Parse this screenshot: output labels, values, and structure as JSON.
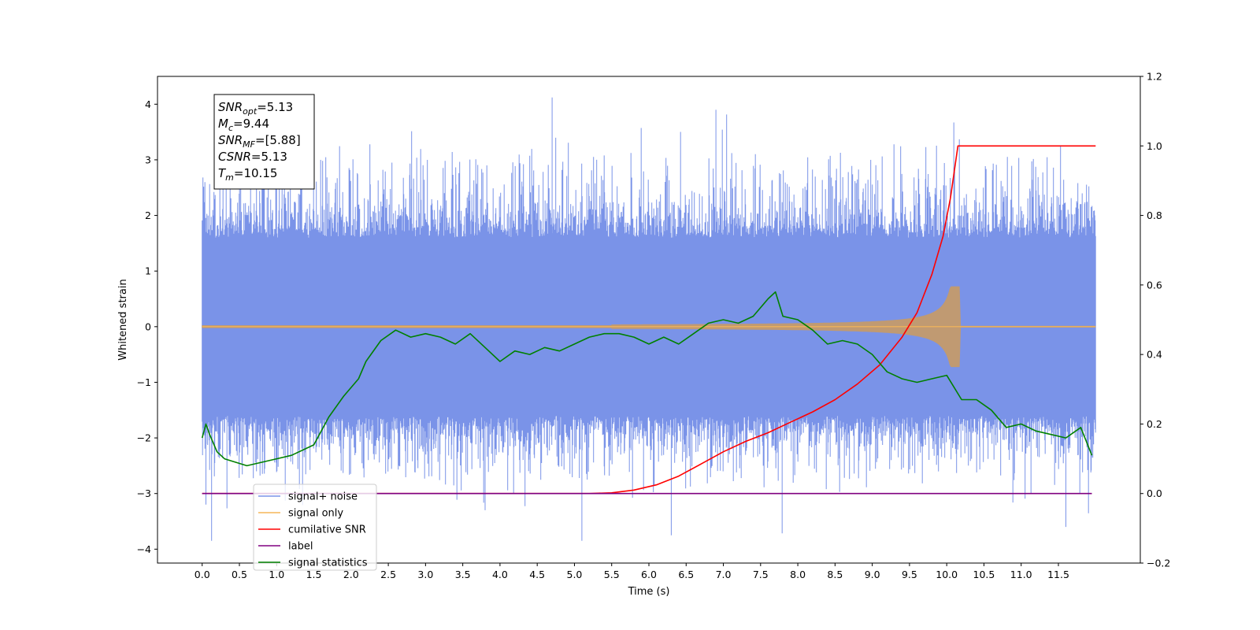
{
  "chart_data": {
    "type": "line",
    "xlabel": "Time (s)",
    "ylabel": "Whitened strain",
    "xlim": [
      -0.6,
      12.6
    ],
    "ylim": [
      -4.25,
      4.5
    ],
    "y2lim": [
      -0.2,
      1.2
    ],
    "x_ticks": [
      "0.0",
      "0.5",
      "1.0",
      "1.5",
      "2.0",
      "2.5",
      "3.0",
      "3.5",
      "4.0",
      "4.5",
      "5.0",
      "5.5",
      "6.0",
      "6.5",
      "7.0",
      "7.5",
      "8.0",
      "8.5",
      "9.0",
      "9.5",
      "10.0",
      "10.5",
      "11.0",
      "11.5"
    ],
    "y_ticks": [
      "−4",
      "−3",
      "−2",
      "−1",
      "0",
      "1",
      "2",
      "3",
      "4"
    ],
    "y2_ticks": [
      "−0.2",
      "0.0",
      "0.2",
      "0.4",
      "0.6",
      "0.8",
      "1.0",
      "1.2"
    ],
    "grid": false,
    "legend_position": "lower-left",
    "annotation": {
      "lines": [
        {
          "var": "SNR",
          "sub": "opt",
          "value": "=5.13"
        },
        {
          "var": "M",
          "sub": "c",
          "value": "=9.44"
        },
        {
          "var": "SNR",
          "sub": "MF",
          "value": "=[5.88]"
        },
        {
          "var": "CSNR",
          "sub": "",
          "value": "=5.13"
        },
        {
          "var": "T",
          "sub": "m",
          "value": "=10.15"
        }
      ]
    },
    "series": [
      {
        "name": "signal+ noise",
        "color": "#7a93e8",
        "kind": "noise",
        "x_range": [
          0.0,
          12.0
        ],
        "typical_range": [
          -1.6,
          1.6
        ],
        "max": 4.12,
        "min": -3.85
      },
      {
        "name": "signal only",
        "color": "#f6b659",
        "kind": "chirp",
        "x_range": [
          0.0,
          12.0
        ],
        "merger_time": 10.15,
        "peak_amplitude": 0.72
      },
      {
        "name": "cumilative SNR",
        "color": "#ff0000",
        "axis": "right",
        "x": [
          0.0,
          5.2,
          5.5,
          5.8,
          6.1,
          6.4,
          6.7,
          7.0,
          7.3,
          7.6,
          7.9,
          8.2,
          8.5,
          8.8,
          9.1,
          9.4,
          9.6,
          9.8,
          9.95,
          10.05,
          10.15,
          12.0
        ],
        "y": [
          0.0,
          0.0,
          0.002,
          0.01,
          0.025,
          0.05,
          0.085,
          0.12,
          0.15,
          0.175,
          0.205,
          0.235,
          0.27,
          0.315,
          0.37,
          0.45,
          0.52,
          0.63,
          0.74,
          0.85,
          1.0,
          1.0
        ]
      },
      {
        "name": "label",
        "color": "#800080",
        "axis": "right",
        "x": [
          0.0,
          11.95
        ],
        "y": [
          0.0,
          0.0
        ]
      },
      {
        "name": "signal statistics",
        "color": "#008000",
        "axis": "right",
        "x": [
          0.0,
          0.05,
          0.1,
          0.2,
          0.3,
          0.45,
          0.6,
          0.8,
          1.0,
          1.2,
          1.5,
          1.7,
          1.9,
          2.1,
          2.2,
          2.4,
          2.6,
          2.8,
          3.0,
          3.2,
          3.4,
          3.6,
          3.8,
          4.0,
          4.2,
          4.4,
          4.6,
          4.8,
          5.0,
          5.2,
          5.4,
          5.6,
          5.8,
          6.0,
          6.2,
          6.4,
          6.6,
          6.8,
          7.0,
          7.2,
          7.4,
          7.6,
          7.7,
          7.8,
          8.0,
          8.2,
          8.4,
          8.6,
          8.8,
          9.0,
          9.2,
          9.4,
          9.6,
          9.8,
          10.0,
          10.2,
          10.4,
          10.6,
          10.8,
          11.0,
          11.2,
          11.4,
          11.6,
          11.8,
          11.95
        ],
        "y": [
          0.16,
          0.2,
          0.17,
          0.12,
          0.1,
          0.09,
          0.08,
          0.09,
          0.1,
          0.11,
          0.14,
          0.22,
          0.28,
          0.33,
          0.38,
          0.44,
          0.47,
          0.45,
          0.46,
          0.45,
          0.43,
          0.46,
          0.42,
          0.38,
          0.41,
          0.4,
          0.42,
          0.41,
          0.43,
          0.45,
          0.46,
          0.46,
          0.45,
          0.43,
          0.45,
          0.43,
          0.46,
          0.49,
          0.5,
          0.49,
          0.51,
          0.56,
          0.58,
          0.51,
          0.5,
          0.47,
          0.43,
          0.44,
          0.43,
          0.4,
          0.35,
          0.33,
          0.32,
          0.33,
          0.34,
          0.27,
          0.27,
          0.24,
          0.19,
          0.2,
          0.18,
          0.17,
          0.16,
          0.19,
          0.11
        ]
      }
    ]
  }
}
